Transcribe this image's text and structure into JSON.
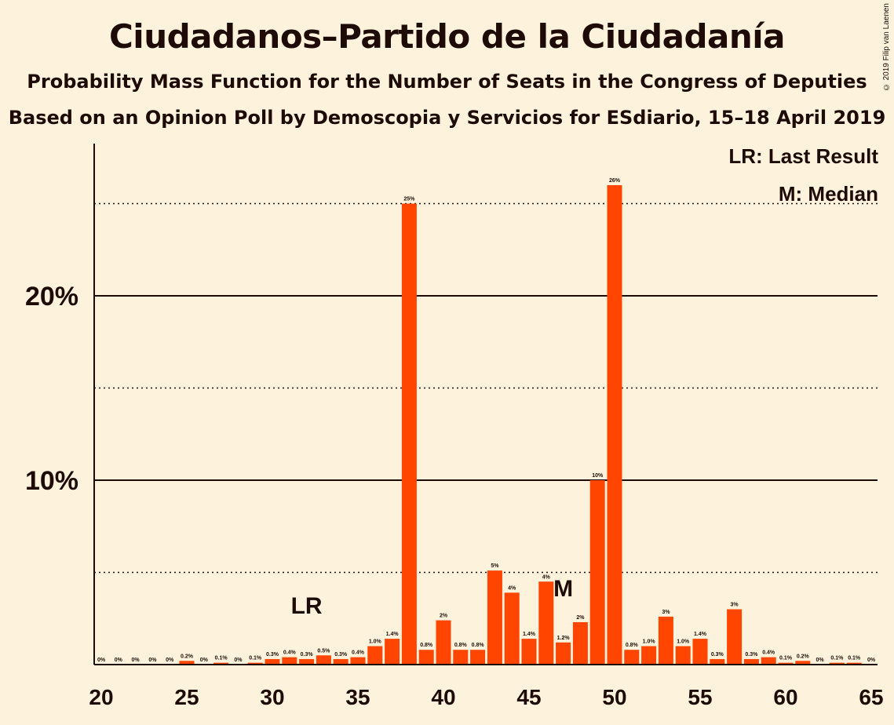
{
  "header": {
    "title": "Ciudadanos–Partido de la Ciudadanía",
    "subtitle": "Probability Mass Function for the Number of Seats in the Congress of Deputies",
    "subtitle2": "Based on an Opinion Poll by Demoscopia y Servicios for ESdiario, 15–18 April 2019",
    "copyright": "© 2019 Filip van Laenen"
  },
  "legend": {
    "last_result": "LR: Last Result",
    "median": "M: Median"
  },
  "colors": {
    "bar": "#ff4500",
    "background": "#fdf3dc",
    "text": "#1e0b07"
  },
  "chart_data": {
    "type": "bar",
    "x": [
      20,
      21,
      22,
      23,
      24,
      25,
      26,
      27,
      28,
      29,
      30,
      31,
      32,
      33,
      34,
      35,
      36,
      37,
      38,
      39,
      40,
      41,
      42,
      43,
      44,
      45,
      46,
      47,
      48,
      49,
      50,
      51,
      52,
      53,
      54,
      55,
      56,
      57,
      58,
      59,
      60,
      61,
      62,
      63,
      64,
      65
    ],
    "values": [
      0,
      0,
      0,
      0,
      0,
      0.2,
      0,
      0.1,
      0,
      0.1,
      0.3,
      0.4,
      0.3,
      0.5,
      0.3,
      0.4,
      1.0,
      1.4,
      25,
      0.8,
      2.4,
      0.8,
      0.8,
      5.1,
      3.9,
      1.4,
      4.5,
      1.2,
      2.3,
      10,
      26,
      0.8,
      1.0,
      2.6,
      1.0,
      1.4,
      0.3,
      3,
      0.3,
      0.4,
      0.1,
      0.2,
      0,
      0.1,
      0.1,
      0
    ],
    "labels": [
      "0%",
      "0%",
      "0%",
      "0%",
      "0%",
      "0.2%",
      "0%",
      "0.1%",
      "0%",
      "0.1%",
      "0.3%",
      "0.4%",
      "0.3%",
      "0.5%",
      "0.3%",
      "0.4%",
      "1.0%",
      "1.4%",
      "25%",
      "0.8%",
      "2%",
      "0.8%",
      "0.8%",
      "5%",
      "4%",
      "1.4%",
      "4%",
      "1.2%",
      "2%",
      "10%",
      "26%",
      "0.8%",
      "1.0%",
      "3%",
      "1.0%",
      "1.4%",
      "0.3%",
      "3%",
      "0.3%",
      "0.4%",
      "0.1%",
      "0.2%",
      "0%",
      "0.1%",
      "0.1%",
      "0%"
    ],
    "xticks": [
      "20",
      "25",
      "30",
      "35",
      "40",
      "45",
      "50",
      "55",
      "60",
      "65"
    ],
    "yticks": [
      "10%",
      "20%"
    ],
    "ylim": [
      0,
      27
    ],
    "grid_major": [
      10,
      20
    ],
    "grid_minor": [
      5,
      15,
      25
    ],
    "last_result": {
      "x": 32,
      "label": "LR"
    },
    "median": {
      "x": 47,
      "label": "M"
    }
  }
}
